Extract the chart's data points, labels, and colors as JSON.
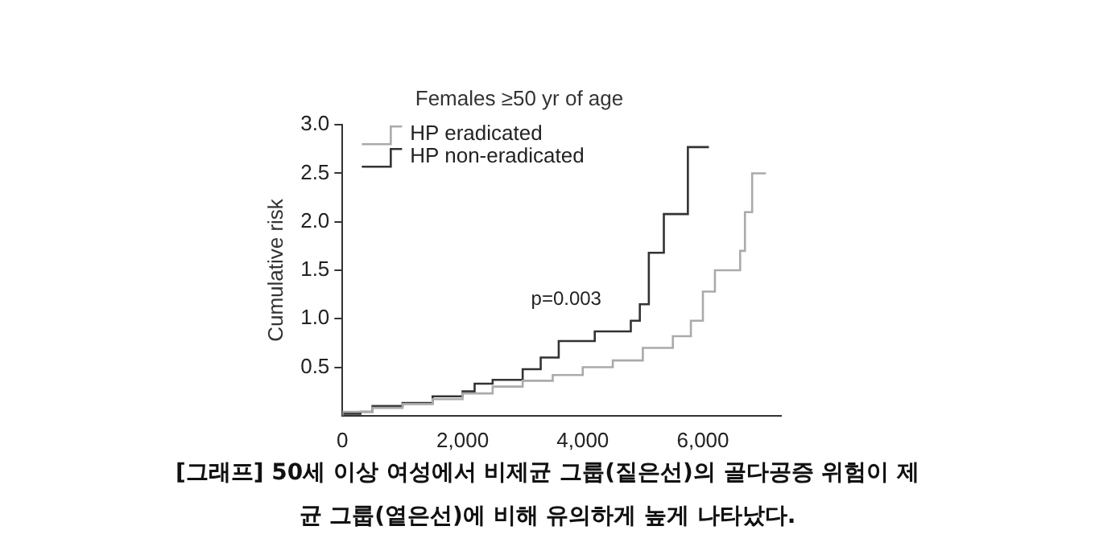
{
  "chart_data": {
    "type": "step",
    "title": "Females ≥50 yr of age",
    "ylabel": "Cumulative risk",
    "xlim": [
      0,
      7300
    ],
    "xticks": [
      0,
      {
        "value": 2000,
        "label": "2,000"
      },
      {
        "value": 4000,
        "label": "4,000"
      },
      {
        "value": 6000,
        "label": "6,000"
      }
    ],
    "ylim": [
      0,
      3
    ],
    "yticks": [
      {
        "value": 0.5,
        "label": "0.5"
      },
      {
        "value": 1,
        "label": "1.0"
      },
      {
        "value": 1.5,
        "label": "1.5"
      },
      {
        "value": 2,
        "label": "2.0"
      },
      {
        "value": 2.5,
        "label": "2.5"
      },
      {
        "value": 3,
        "label": "3.0"
      }
    ],
    "grid": false,
    "legend": "top left",
    "series": [
      {
        "name": "HP eradicated",
        "color": "#aaaaaa",
        "x": [
          0,
          500,
          1000,
          1500,
          2000,
          2500,
          3000,
          3500,
          4000,
          4500,
          5000,
          5500,
          5800,
          6000,
          6200,
          6620,
          6700,
          6820,
          6950,
          7050
        ],
        "values": [
          0,
          0.04,
          0.08,
          0.12,
          0.17,
          0.23,
          0.3,
          0.36,
          0.42,
          0.5,
          0.57,
          0.7,
          0.82,
          0.98,
          1.28,
          1.5,
          1.7,
          2.1,
          2.5,
          2.5
        ]
      },
      {
        "name": "HP non-eradicated",
        "color": "#333333",
        "x": [
          0,
          300,
          500,
          1000,
          1500,
          2000,
          2200,
          2500,
          3000,
          3300,
          3600,
          4200,
          4800,
          4950,
          5100,
          5350,
          5750,
          5850,
          6100
        ],
        "values": [
          0,
          0.02,
          0.04,
          0.1,
          0.13,
          0.2,
          0.25,
          0.33,
          0.37,
          0.48,
          0.6,
          0.77,
          0.87,
          0.98,
          1.15,
          1.68,
          2.08,
          2.77,
          2.77
        ]
      }
    ],
    "annotations": [
      "p=0.003",
      "[그래프] 50세 이상 여성에서 비제균 그룹(짙은선)의 골다공증 위험이 제균 그룹(옅은선)에 비해 유의하게 높게 나타났다."
    ]
  }
}
